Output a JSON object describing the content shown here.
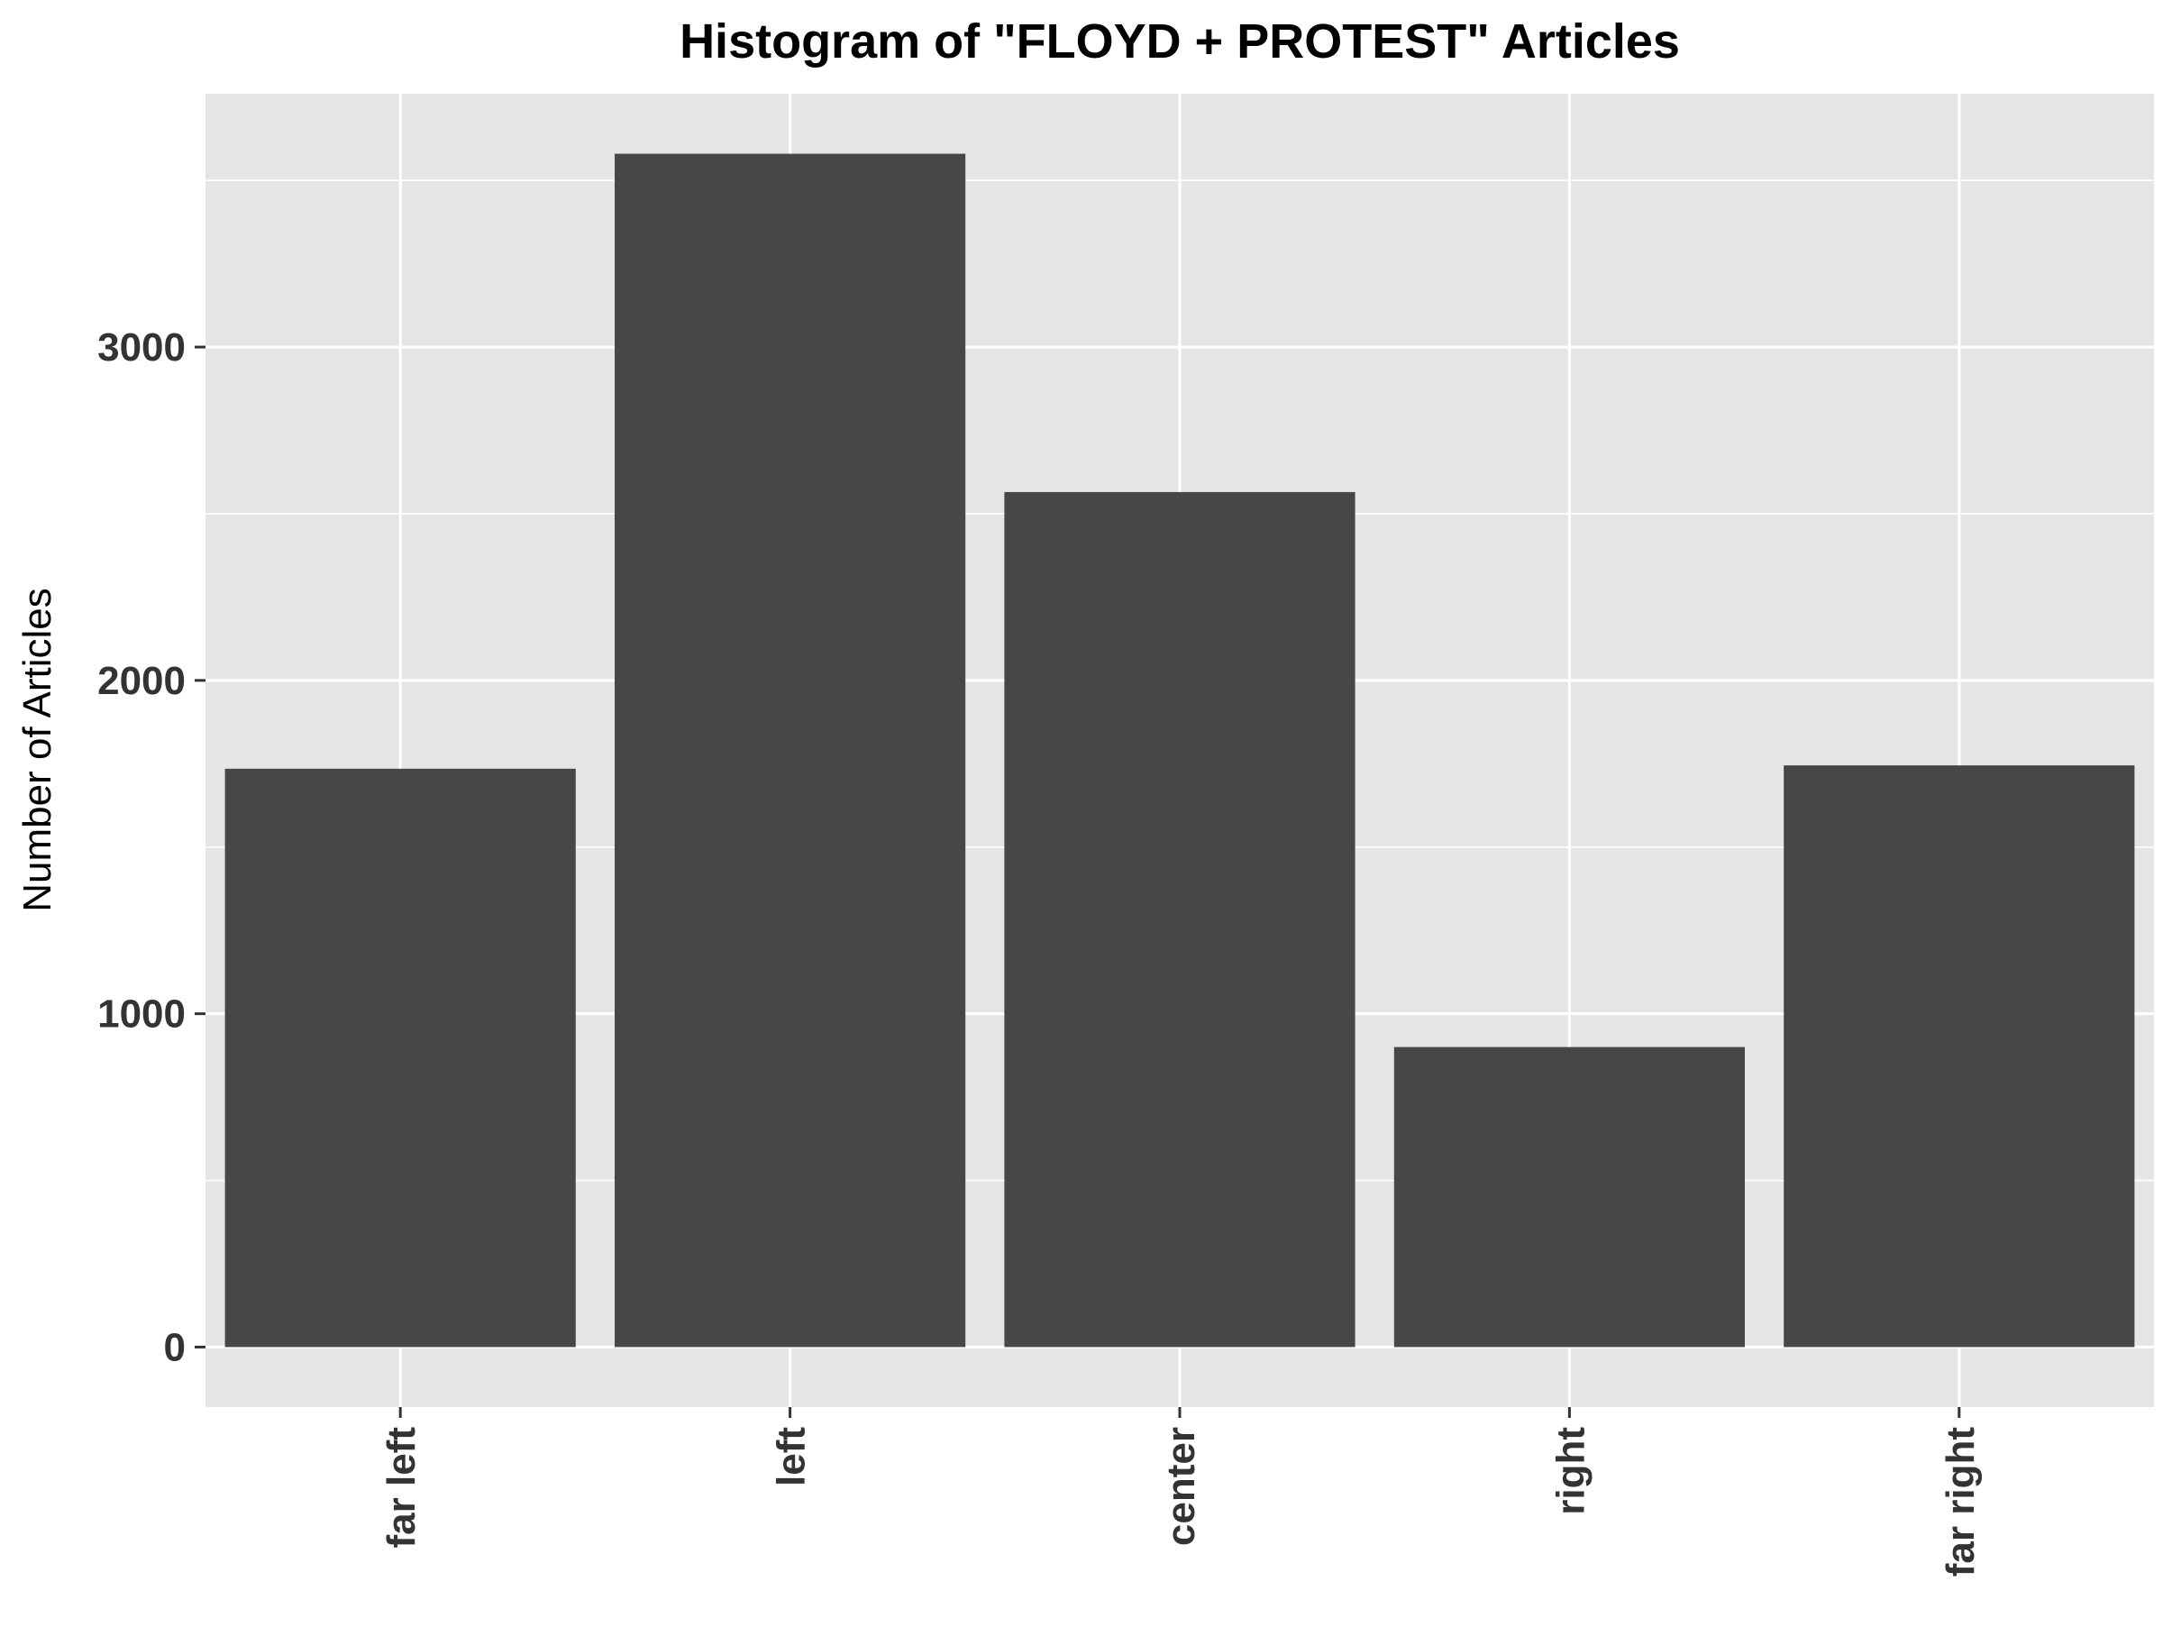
{
  "chart_data": {
    "type": "bar",
    "title": "Histogram of \"FLOYD + PROTEST\" Articles",
    "xlabel": "",
    "ylabel": "Number of Articles",
    "categories": [
      "far left",
      "left",
      "center",
      "right",
      "far right"
    ],
    "values": [
      1735,
      3580,
      2565,
      900,
      1745
    ],
    "ylim": [
      -180,
      3760
    ],
    "yticks": [
      0,
      1000,
      2000,
      3000
    ],
    "grid": true,
    "colors": {
      "panel_background": "#e5e5e5",
      "grid": "#ffffff",
      "bar": "#474747",
      "tick_text": "#333333",
      "title_text": "#000000"
    }
  }
}
